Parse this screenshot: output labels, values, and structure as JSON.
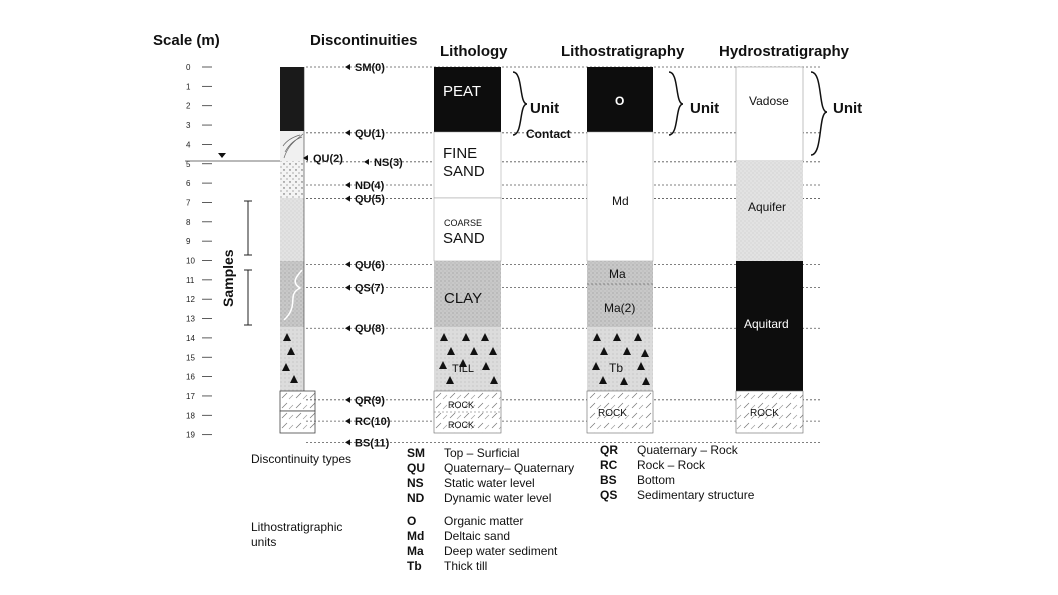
{
  "headers": {
    "scale": "Scale (m)",
    "discontinuities": "Discontinuities",
    "lithology": "Lithology",
    "lithostratigraphy": "Lithostratigraphy",
    "hydrostratigraphy": "Hydrostratigraphy"
  },
  "scale_ticks": [
    "0",
    "1",
    "2",
    "3",
    "4",
    "5",
    "6",
    "7",
    "8",
    "9",
    "10",
    "11",
    "12",
    "13",
    "14",
    "15",
    "16",
    "17",
    "18",
    "19"
  ],
  "samples_label": "Samples",
  "discontinuities": [
    {
      "label": "SM(0)",
      "depth": 0
    },
    {
      "label": "QU(1)",
      "depth": 3.4
    },
    {
      "label": "QU(2)",
      "depth": 4.7
    },
    {
      "label": "NS(3)",
      "depth": 4.9
    },
    {
      "label": "ND(4)",
      "depth": 6.1
    },
    {
      "label": "QU(5)",
      "depth": 6.8
    },
    {
      "label": "QU(6)",
      "depth": 10.2
    },
    {
      "label": "QS(7)",
      "depth": 11.4
    },
    {
      "label": "QU(8)",
      "depth": 13.5
    },
    {
      "label": "QR(9)",
      "depth": 17.2
    },
    {
      "label": "RC(10)",
      "depth": 18.3
    },
    {
      "label": "BS(11)",
      "depth": 19.4
    }
  ],
  "lithology": {
    "peat": "PEAT",
    "fine_sand": [
      "FINE",
      "SAND"
    ],
    "coarse_small": "COARSE",
    "coarse_sand": "SAND",
    "clay": "CLAY",
    "till": "TILL",
    "rock1": "ROCK",
    "rock2": "ROCK",
    "unit_label": "Unit",
    "contact_label": "Contact"
  },
  "lithostratigraphy": {
    "o": "O",
    "md": "Md",
    "ma": "Ma",
    "ma2": "Ma(2)",
    "tb": "Tb",
    "rock": "ROCK",
    "unit_label": "Unit"
  },
  "hydrostratigraphy": {
    "vadose": "Vadose",
    "aquifer": "Aquifer",
    "aquitard": "Aquitard",
    "rock": "ROCK",
    "unit_label": "Unit"
  },
  "legend": {
    "discontinuity_title": "Discontinuity types",
    "units_title": "Lithostratigraphic units",
    "col1": [
      {
        "code": "SM",
        "text": "Top – Surficial"
      },
      {
        "code": "QU",
        "text": "Quaternary– Quaternary"
      },
      {
        "code": "NS",
        "text": "Static water level"
      },
      {
        "code": "ND",
        "text": "Dynamic water level"
      }
    ],
    "col2": [
      {
        "code": "QR",
        "text": "Quaternary – Rock"
      },
      {
        "code": "RC",
        "text": "Rock – Rock"
      },
      {
        "code": "BS",
        "text": "Bottom"
      },
      {
        "code": "QS",
        "text": "Sedimentary structure"
      }
    ],
    "units": [
      {
        "code": "O",
        "text": "Organic matter"
      },
      {
        "code": "Md",
        "text": "Deltaic sand"
      },
      {
        "code": "Ma",
        "text": "Deep water sediment"
      },
      {
        "code": "Tb",
        "text": "Thick till"
      }
    ]
  }
}
